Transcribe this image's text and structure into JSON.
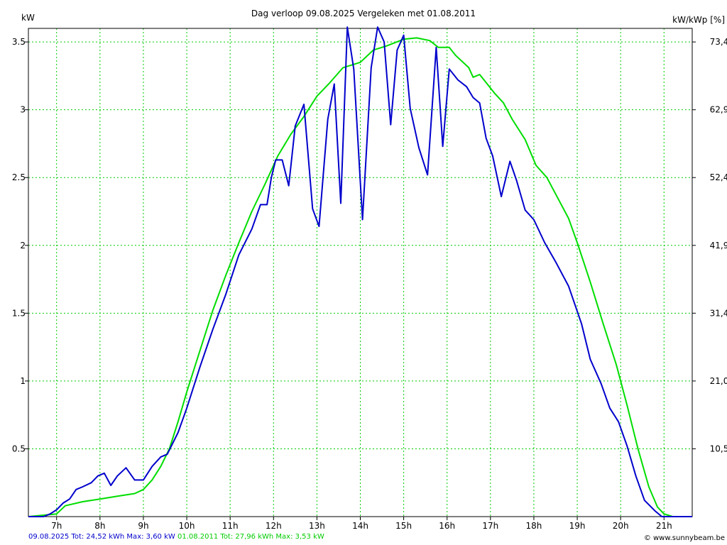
{
  "header": {
    "title": "Dag  verloop 09.08.2025   Vergeleken met 01.08.2011",
    "y_left_label": "kW",
    "y_right_label": "kW/kWp [%]"
  },
  "footer": {
    "legend1": "09.08.2025 Tot: 24,52 kWh Max: 3,60 kW",
    "legend2": "01.08.2011 Tot: 27,96 kWh Max: 3,53 kW",
    "credit": "© www.sunnybeam.be"
  },
  "colors": {
    "series1": "#0000cc",
    "series2": "#00dd00",
    "grid": "#00cc00"
  },
  "chart_data": {
    "type": "line",
    "xlim": [
      6.35,
      21.65
    ],
    "ylim": [
      0,
      3.6
    ],
    "x_ticks": [
      7,
      8,
      9,
      10,
      11,
      12,
      13,
      14,
      15,
      16,
      17,
      18,
      19,
      20,
      21
    ],
    "x_tick_labels": [
      "7h",
      "8h",
      "9h",
      "10h",
      "11h",
      "12h",
      "13h",
      "14h",
      "15h",
      "16h",
      "17h",
      "18h",
      "19h",
      "20h",
      "21h"
    ],
    "y_ticks": [
      0.5,
      1,
      1.5,
      2,
      2.5,
      3,
      3.5
    ],
    "y_tick_labels": [
      "0.5",
      "1",
      "1.5",
      "2",
      "2.5",
      "3",
      "3.5"
    ],
    "y2_tick_labels": [
      "10,5",
      "21,0",
      "31,4",
      "41,9",
      "52,4",
      "62,9",
      "73,4"
    ],
    "grid": true,
    "series": [
      {
        "name": "09.08.2025",
        "points": [
          [
            6.35,
            0
          ],
          [
            6.7,
            0
          ],
          [
            6.85,
            0.02
          ],
          [
            7.0,
            0.05
          ],
          [
            7.15,
            0.1
          ],
          [
            7.3,
            0.13
          ],
          [
            7.45,
            0.2
          ],
          [
            7.6,
            0.22
          ],
          [
            7.8,
            0.25
          ],
          [
            7.95,
            0.3
          ],
          [
            8.1,
            0.32
          ],
          [
            8.25,
            0.23
          ],
          [
            8.4,
            0.3
          ],
          [
            8.6,
            0.36
          ],
          [
            8.8,
            0.27
          ],
          [
            9.0,
            0.27
          ],
          [
            9.2,
            0.37
          ],
          [
            9.4,
            0.44
          ],
          [
            9.55,
            0.46
          ],
          [
            9.8,
            0.62
          ],
          [
            10.0,
            0.8
          ],
          [
            10.3,
            1.1
          ],
          [
            10.6,
            1.38
          ],
          [
            10.9,
            1.64
          ],
          [
            11.2,
            1.93
          ],
          [
            11.5,
            2.12
          ],
          [
            11.7,
            2.3
          ],
          [
            11.85,
            2.3
          ],
          [
            11.95,
            2.5
          ],
          [
            12.05,
            2.63
          ],
          [
            12.2,
            2.63
          ],
          [
            12.35,
            2.44
          ],
          [
            12.5,
            2.88
          ],
          [
            12.7,
            3.04
          ],
          [
            12.9,
            2.27
          ],
          [
            13.05,
            2.14
          ],
          [
            13.25,
            2.93
          ],
          [
            13.4,
            3.19
          ],
          [
            13.55,
            2.31
          ],
          [
            13.7,
            3.61
          ],
          [
            13.85,
            3.3
          ],
          [
            14.05,
            2.19
          ],
          [
            14.25,
            3.31
          ],
          [
            14.4,
            3.61
          ],
          [
            14.55,
            3.5
          ],
          [
            14.7,
            2.89
          ],
          [
            14.85,
            3.44
          ],
          [
            15.0,
            3.55
          ],
          [
            15.15,
            3.01
          ],
          [
            15.35,
            2.72
          ],
          [
            15.55,
            2.52
          ],
          [
            15.75,
            3.46
          ],
          [
            15.9,
            2.73
          ],
          [
            16.05,
            3.3
          ],
          [
            16.25,
            3.22
          ],
          [
            16.45,
            3.17
          ],
          [
            16.6,
            3.09
          ],
          [
            16.75,
            3.05
          ],
          [
            16.9,
            2.79
          ],
          [
            17.05,
            2.66
          ],
          [
            17.25,
            2.36
          ],
          [
            17.45,
            2.62
          ],
          [
            17.6,
            2.48
          ],
          [
            17.8,
            2.26
          ],
          [
            18.0,
            2.19
          ],
          [
            18.25,
            2.02
          ],
          [
            18.5,
            1.88
          ],
          [
            18.8,
            1.7
          ],
          [
            19.1,
            1.42
          ],
          [
            19.3,
            1.16
          ],
          [
            19.55,
            0.98
          ],
          [
            19.75,
            0.8
          ],
          [
            19.95,
            0.7
          ],
          [
            20.15,
            0.52
          ],
          [
            20.35,
            0.3
          ],
          [
            20.55,
            0.12
          ],
          [
            20.8,
            0.04
          ],
          [
            20.95,
            0
          ],
          [
            21.65,
            0
          ]
        ]
      },
      {
        "name": "01.08.2011",
        "points": [
          [
            6.35,
            0
          ],
          [
            7.0,
            0.02
          ],
          [
            7.2,
            0.08
          ],
          [
            7.6,
            0.11
          ],
          [
            8.0,
            0.13
          ],
          [
            8.4,
            0.15
          ],
          [
            8.8,
            0.17
          ],
          [
            9.0,
            0.2
          ],
          [
            9.2,
            0.27
          ],
          [
            9.4,
            0.37
          ],
          [
            9.6,
            0.5
          ],
          [
            9.8,
            0.7
          ],
          [
            10.0,
            0.92
          ],
          [
            10.3,
            1.22
          ],
          [
            10.6,
            1.52
          ],
          [
            10.9,
            1.78
          ],
          [
            11.2,
            2.02
          ],
          [
            11.5,
            2.25
          ],
          [
            11.8,
            2.45
          ],
          [
            12.1,
            2.66
          ],
          [
            12.4,
            2.82
          ],
          [
            12.7,
            2.95
          ],
          [
            13.0,
            3.1
          ],
          [
            13.3,
            3.2
          ],
          [
            13.6,
            3.31
          ],
          [
            14.0,
            3.35
          ],
          [
            14.3,
            3.44
          ],
          [
            14.6,
            3.47
          ],
          [
            15.0,
            3.52
          ],
          [
            15.3,
            3.53
          ],
          [
            15.6,
            3.51
          ],
          [
            15.8,
            3.46
          ],
          [
            16.05,
            3.46
          ],
          [
            16.2,
            3.4
          ],
          [
            16.5,
            3.31
          ],
          [
            16.6,
            3.24
          ],
          [
            16.75,
            3.26
          ],
          [
            16.9,
            3.2
          ],
          [
            17.1,
            3.12
          ],
          [
            17.3,
            3.05
          ],
          [
            17.5,
            2.93
          ],
          [
            17.8,
            2.78
          ],
          [
            18.05,
            2.59
          ],
          [
            18.3,
            2.5
          ],
          [
            18.5,
            2.38
          ],
          [
            18.8,
            2.2
          ],
          [
            19.0,
            2.02
          ],
          [
            19.3,
            1.73
          ],
          [
            19.6,
            1.42
          ],
          [
            19.9,
            1.12
          ],
          [
            20.15,
            0.82
          ],
          [
            20.4,
            0.5
          ],
          [
            20.65,
            0.22
          ],
          [
            20.85,
            0.07
          ],
          [
            21.0,
            0.02
          ],
          [
            21.2,
            0
          ],
          [
            21.65,
            0
          ]
        ]
      }
    ]
  }
}
